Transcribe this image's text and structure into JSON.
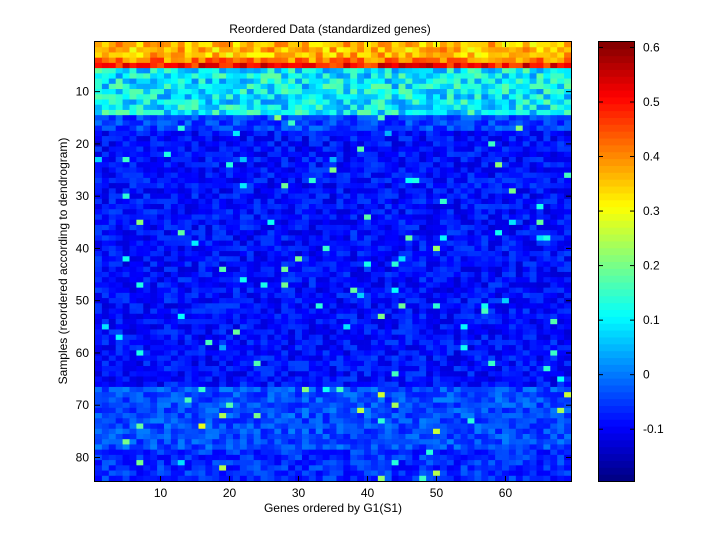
{
  "chart_data": {
    "type": "heatmap",
    "title": "Reordered Data (standardized genes)",
    "xlabel": "Genes ordered by G1(S1)",
    "ylabel": "Samples (reordered according to dendrogram)",
    "n_cols": 69,
    "n_rows": 84,
    "xlim": [
      0.5,
      69.5
    ],
    "ylim": [
      0.5,
      84.5
    ],
    "y_reversed": true,
    "x_ticks": [
      10,
      20,
      30,
      40,
      50,
      60
    ],
    "y_ticks": [
      10,
      20,
      30,
      40,
      50,
      60,
      70,
      80
    ],
    "x_tick_labels": [
      "10",
      "20",
      "30",
      "40",
      "50",
      "60"
    ],
    "y_tick_labels": [
      "10",
      "20",
      "30",
      "40",
      "50",
      "60",
      "70",
      "80"
    ],
    "colormap": "jet",
    "clim": [
      -0.195,
      0.61
    ],
    "colorbar_ticks": [
      -0.1,
      0,
      0.1,
      0.2,
      0.3,
      0.4,
      0.5,
      0.6
    ],
    "colorbar_tick_labels": [
      "-0.1",
      "0",
      "0.1",
      "0.2",
      "0.3",
      "0.4",
      "0.5",
      "0.6"
    ],
    "row_band_means": [
      {
        "rows": [
          1,
          3
        ],
        "mean": 0.36
      },
      {
        "rows": [
          4,
          4
        ],
        "mean": 0.41
      },
      {
        "rows": [
          5,
          5
        ],
        "mean": 0.5
      },
      {
        "rows": [
          6,
          14
        ],
        "mean": 0.1
      },
      {
        "rows": [
          15,
          17
        ],
        "mean": -0.045
      },
      {
        "rows": [
          18,
          66
        ],
        "mean": -0.085
      },
      {
        "rows": [
          67,
          78
        ],
        "mean": -0.035
      },
      {
        "rows": [
          79,
          84
        ],
        "mean": -0.06
      }
    ],
    "grid": false
  }
}
